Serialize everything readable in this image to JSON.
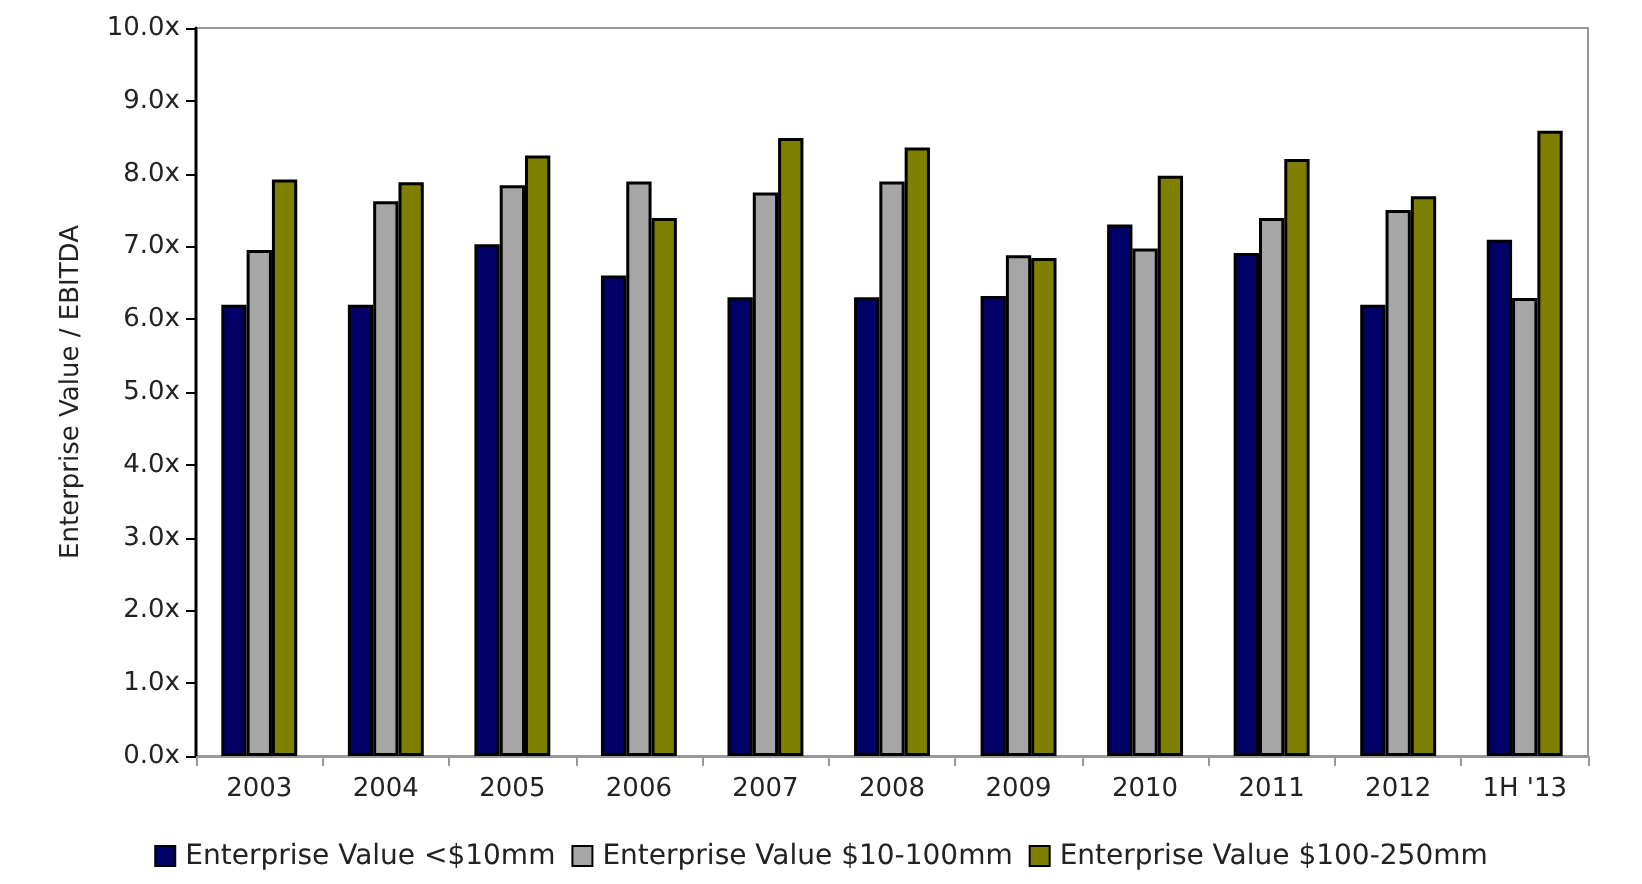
{
  "chart_data": {
    "type": "bar",
    "ylabel": "Enterprise Value / EBITDA",
    "categories": [
      "2003",
      "2004",
      "2005",
      "2006",
      "2007",
      "2008",
      "2009",
      "2010",
      "2011",
      "2012",
      "1H '13"
    ],
    "series": [
      {
        "name": "Enterprise Value <$10mm",
        "color": "#000066",
        "values": [
          6.2,
          6.2,
          7.03,
          6.6,
          6.3,
          6.3,
          6.32,
          7.3,
          6.91,
          6.2,
          7.09
        ]
      },
      {
        "name": "Enterprise Value $10-100mm",
        "color": "#a6a6a6",
        "values": [
          6.95,
          7.62,
          7.84,
          7.89,
          7.74,
          7.89,
          6.88,
          6.97,
          7.39,
          7.5,
          6.29
        ]
      },
      {
        "name": "Enterprise Value $100-250mm",
        "color": "#808000",
        "values": [
          7.92,
          7.88,
          8.25,
          7.39,
          8.49,
          8.36,
          6.84,
          7.97,
          8.2,
          7.69,
          8.59
        ]
      }
    ],
    "ylim": [
      0,
      10
    ],
    "yticks": [
      {
        "value": 0,
        "label": "0.0x"
      },
      {
        "value": 1,
        "label": "1.0x"
      },
      {
        "value": 2,
        "label": "2.0x"
      },
      {
        "value": 3,
        "label": "3.0x"
      },
      {
        "value": 4,
        "label": "4.0x"
      },
      {
        "value": 5,
        "label": "5.0x"
      },
      {
        "value": 6,
        "label": "6.0x"
      },
      {
        "value": 7,
        "label": "7.0x"
      },
      {
        "value": 8,
        "label": "8.0x"
      },
      {
        "value": 9,
        "label": "9.0x"
      },
      {
        "value": 10,
        "label": "10.0x"
      }
    ],
    "grid": false,
    "legend": "bottom"
  }
}
